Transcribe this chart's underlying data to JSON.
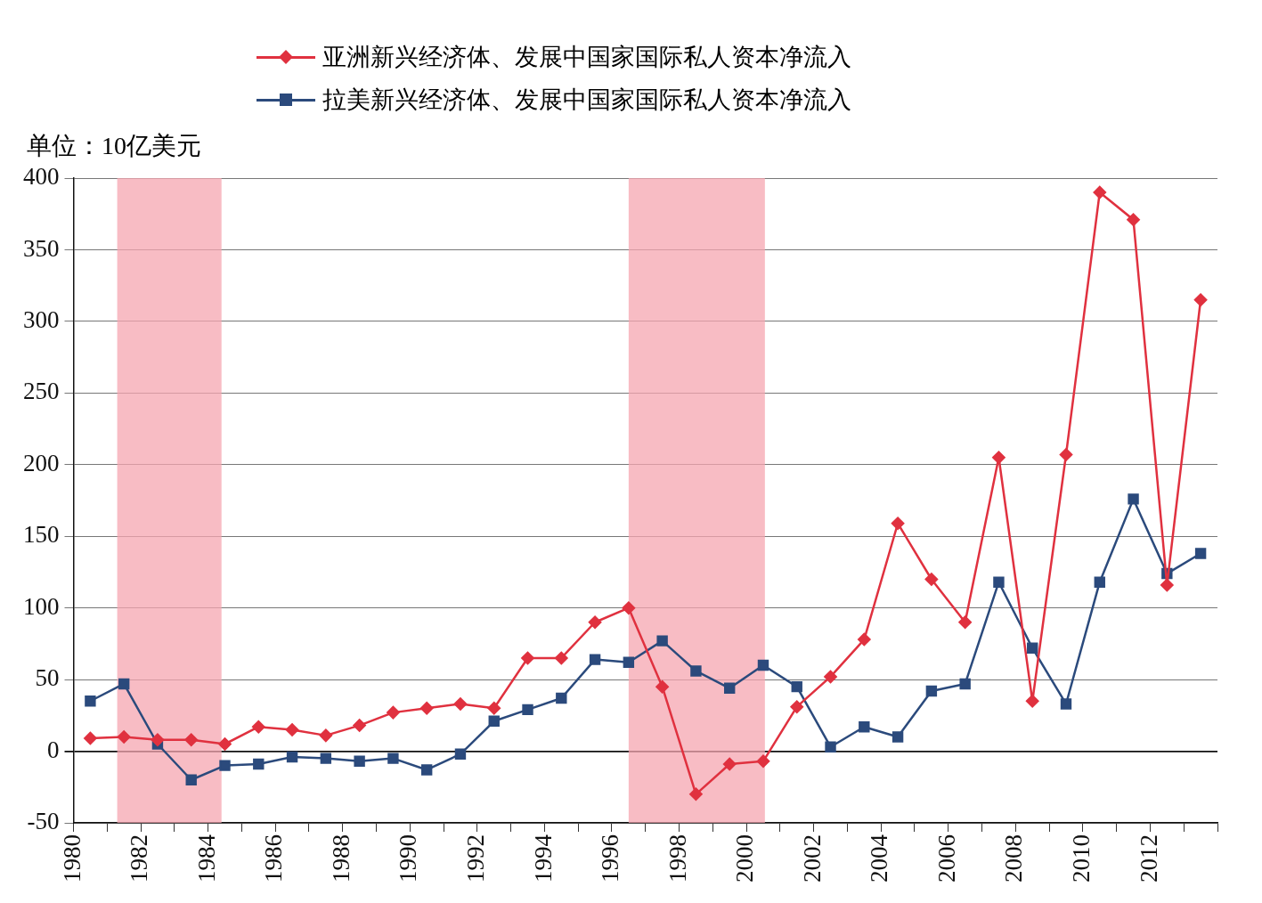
{
  "chart_data": {
    "type": "line",
    "ylabel": "单位：10亿美元",
    "x": [
      1980.5,
      1981.5,
      1982.5,
      1983.5,
      1984.5,
      1985.5,
      1986.5,
      1987.5,
      1988.5,
      1989.5,
      1990.5,
      1991.5,
      1992.5,
      1993.5,
      1994.5,
      1995.5,
      1996.5,
      1997.5,
      1998.5,
      1999.5,
      2000.5,
      2001.5,
      2002.5,
      2003.5,
      2004.5,
      2005.5,
      2006.5,
      2007.5,
      2008.5,
      2009.5,
      2010.5,
      2011.5,
      2012.5,
      2013.5
    ],
    "series": [
      {
        "name": "亚洲新兴经济体、发展中国家国际私人资本净流入",
        "color": "#e0313f",
        "marker": "diamond",
        "values": [
          9,
          10,
          8,
          8,
          5,
          17,
          15,
          11,
          18,
          27,
          30,
          33,
          30,
          65,
          65,
          90,
          100,
          45,
          -30,
          -9,
          -7,
          31,
          52,
          78,
          159,
          120,
          90,
          205,
          35,
          207,
          390,
          371,
          116,
          315
        ]
      },
      {
        "name": "拉美新兴经济体、发展中国家国际私人资本净流入",
        "color": "#2b4a7c",
        "marker": "square",
        "values": [
          35,
          47,
          5,
          -20,
          -10,
          -9,
          -4,
          -5,
          -7,
          -5,
          -13,
          -2,
          21,
          29,
          37,
          64,
          62,
          77,
          56,
          44,
          60,
          45,
          3,
          17,
          10,
          42,
          47,
          118,
          72,
          33,
          118,
          176,
          124,
          138
        ]
      }
    ],
    "xlim": [
      1980,
      2014
    ],
    "xticks": [
      1980,
      {
        "value": 1981,
        "label": null
      },
      1982,
      {
        "value": 1983,
        "label": null
      },
      1984,
      {
        "value": 1985,
        "label": null
      },
      1986,
      {
        "value": 1987,
        "label": null
      },
      1988,
      {
        "value": 1989,
        "label": null
      },
      1990,
      {
        "value": 1991,
        "label": null
      },
      1992,
      {
        "value": 1993,
        "label": null
      },
      1994,
      {
        "value": 1995,
        "label": null
      },
      1996,
      {
        "value": 1997,
        "label": null
      },
      1998,
      {
        "value": 1999,
        "label": null
      },
      2000,
      {
        "value": 2001,
        "label": null
      },
      2002,
      {
        "value": 2003,
        "label": null
      },
      2004,
      {
        "value": 2005,
        "label": null
      },
      2006,
      {
        "value": 2007,
        "label": null
      },
      2008,
      {
        "value": 2009,
        "label": null
      },
      2010,
      {
        "value": 2011,
        "label": null
      },
      2012,
      {
        "value": 2013,
        "label": null
      },
      {
        "value": 2014,
        "label": null
      }
    ],
    "ylim": [
      -50,
      400
    ],
    "yticks": [
      -50,
      0,
      50,
      100,
      150,
      200,
      250,
      300,
      350,
      400
    ],
    "bands": [
      {
        "axis": "x",
        "from": 1981.3,
        "to": 1984.4,
        "color": "#f5a5b0"
      },
      {
        "axis": "x",
        "from": 1996.5,
        "to": 2000.55,
        "color": "#f5a5b0"
      }
    ],
    "grid": "y",
    "legend": "top"
  }
}
